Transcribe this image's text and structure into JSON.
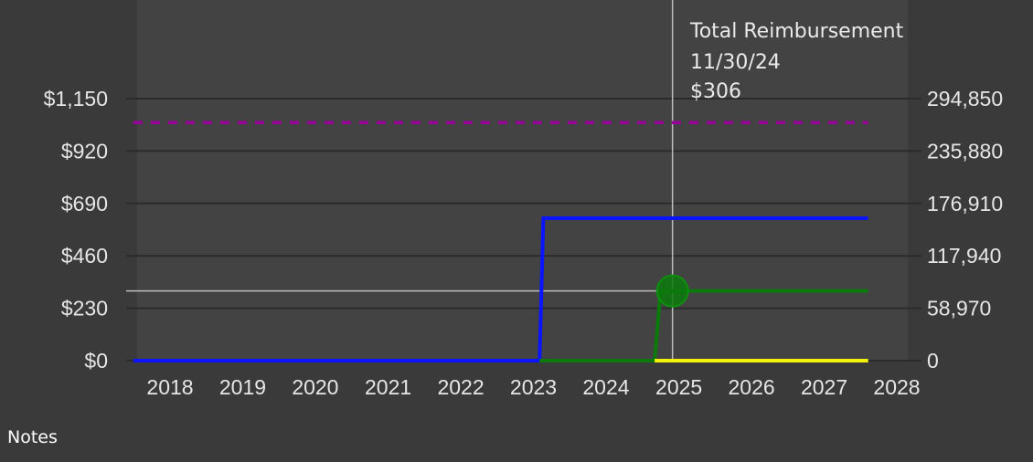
{
  "chart_data": {
    "type": "line",
    "x_range": [
      "2017-07-01",
      "2028-01-01"
    ],
    "x_ticks": [
      "2018",
      "2019",
      "2020",
      "2021",
      "2022",
      "2023",
      "2024",
      "2025",
      "2026",
      "2027",
      "2028"
    ],
    "y_left": {
      "range": [
        0,
        1150
      ],
      "ticks": [
        0,
        230,
        460,
        690,
        920,
        1150
      ],
      "tick_labels": [
        "$0",
        "$230",
        "$460",
        "$690",
        "$920",
        "$1,150"
      ]
    },
    "y_right": {
      "range": [
        0,
        294850
      ],
      "ticks": [
        0,
        58970,
        117940,
        176910,
        235880,
        294850
      ],
      "tick_labels": [
        "0",
        "58,970",
        "117,940",
        "176,910",
        "235,880",
        "294,850"
      ]
    },
    "grid": true,
    "series": [
      {
        "color": "#0a14ff",
        "style": "solid",
        "points": [
          [
            "2017-07-01",
            0
          ],
          [
            "2023-02-01",
            0
          ],
          [
            "2023-02-20",
            625
          ],
          [
            "2027-08-10",
            625
          ]
        ]
      },
      {
        "color": "#0b7a0b",
        "style": "solid",
        "points": [
          [
            "2023-02-01",
            0
          ],
          [
            "2024-09-01",
            0
          ],
          [
            "2024-10-01",
            306
          ],
          [
            "2027-08-10",
            306
          ]
        ]
      },
      {
        "color": "#f2f20a",
        "style": "solid",
        "points": [
          [
            "2024-09-01",
            0
          ],
          [
            "2027-08-10",
            0
          ]
        ]
      },
      {
        "color": "#990099",
        "style": "dashed",
        "points": [
          [
            "2017-07-01",
            1045
          ],
          [
            "2027-08-10",
            1045
          ]
        ]
      }
    ],
    "tooltip": {
      "title": "Total Reimbursement",
      "date_label": "11/30/24",
      "value_label": "$306",
      "x": "2024-11-30",
      "y": 306
    }
  },
  "notes_label": "Notes"
}
